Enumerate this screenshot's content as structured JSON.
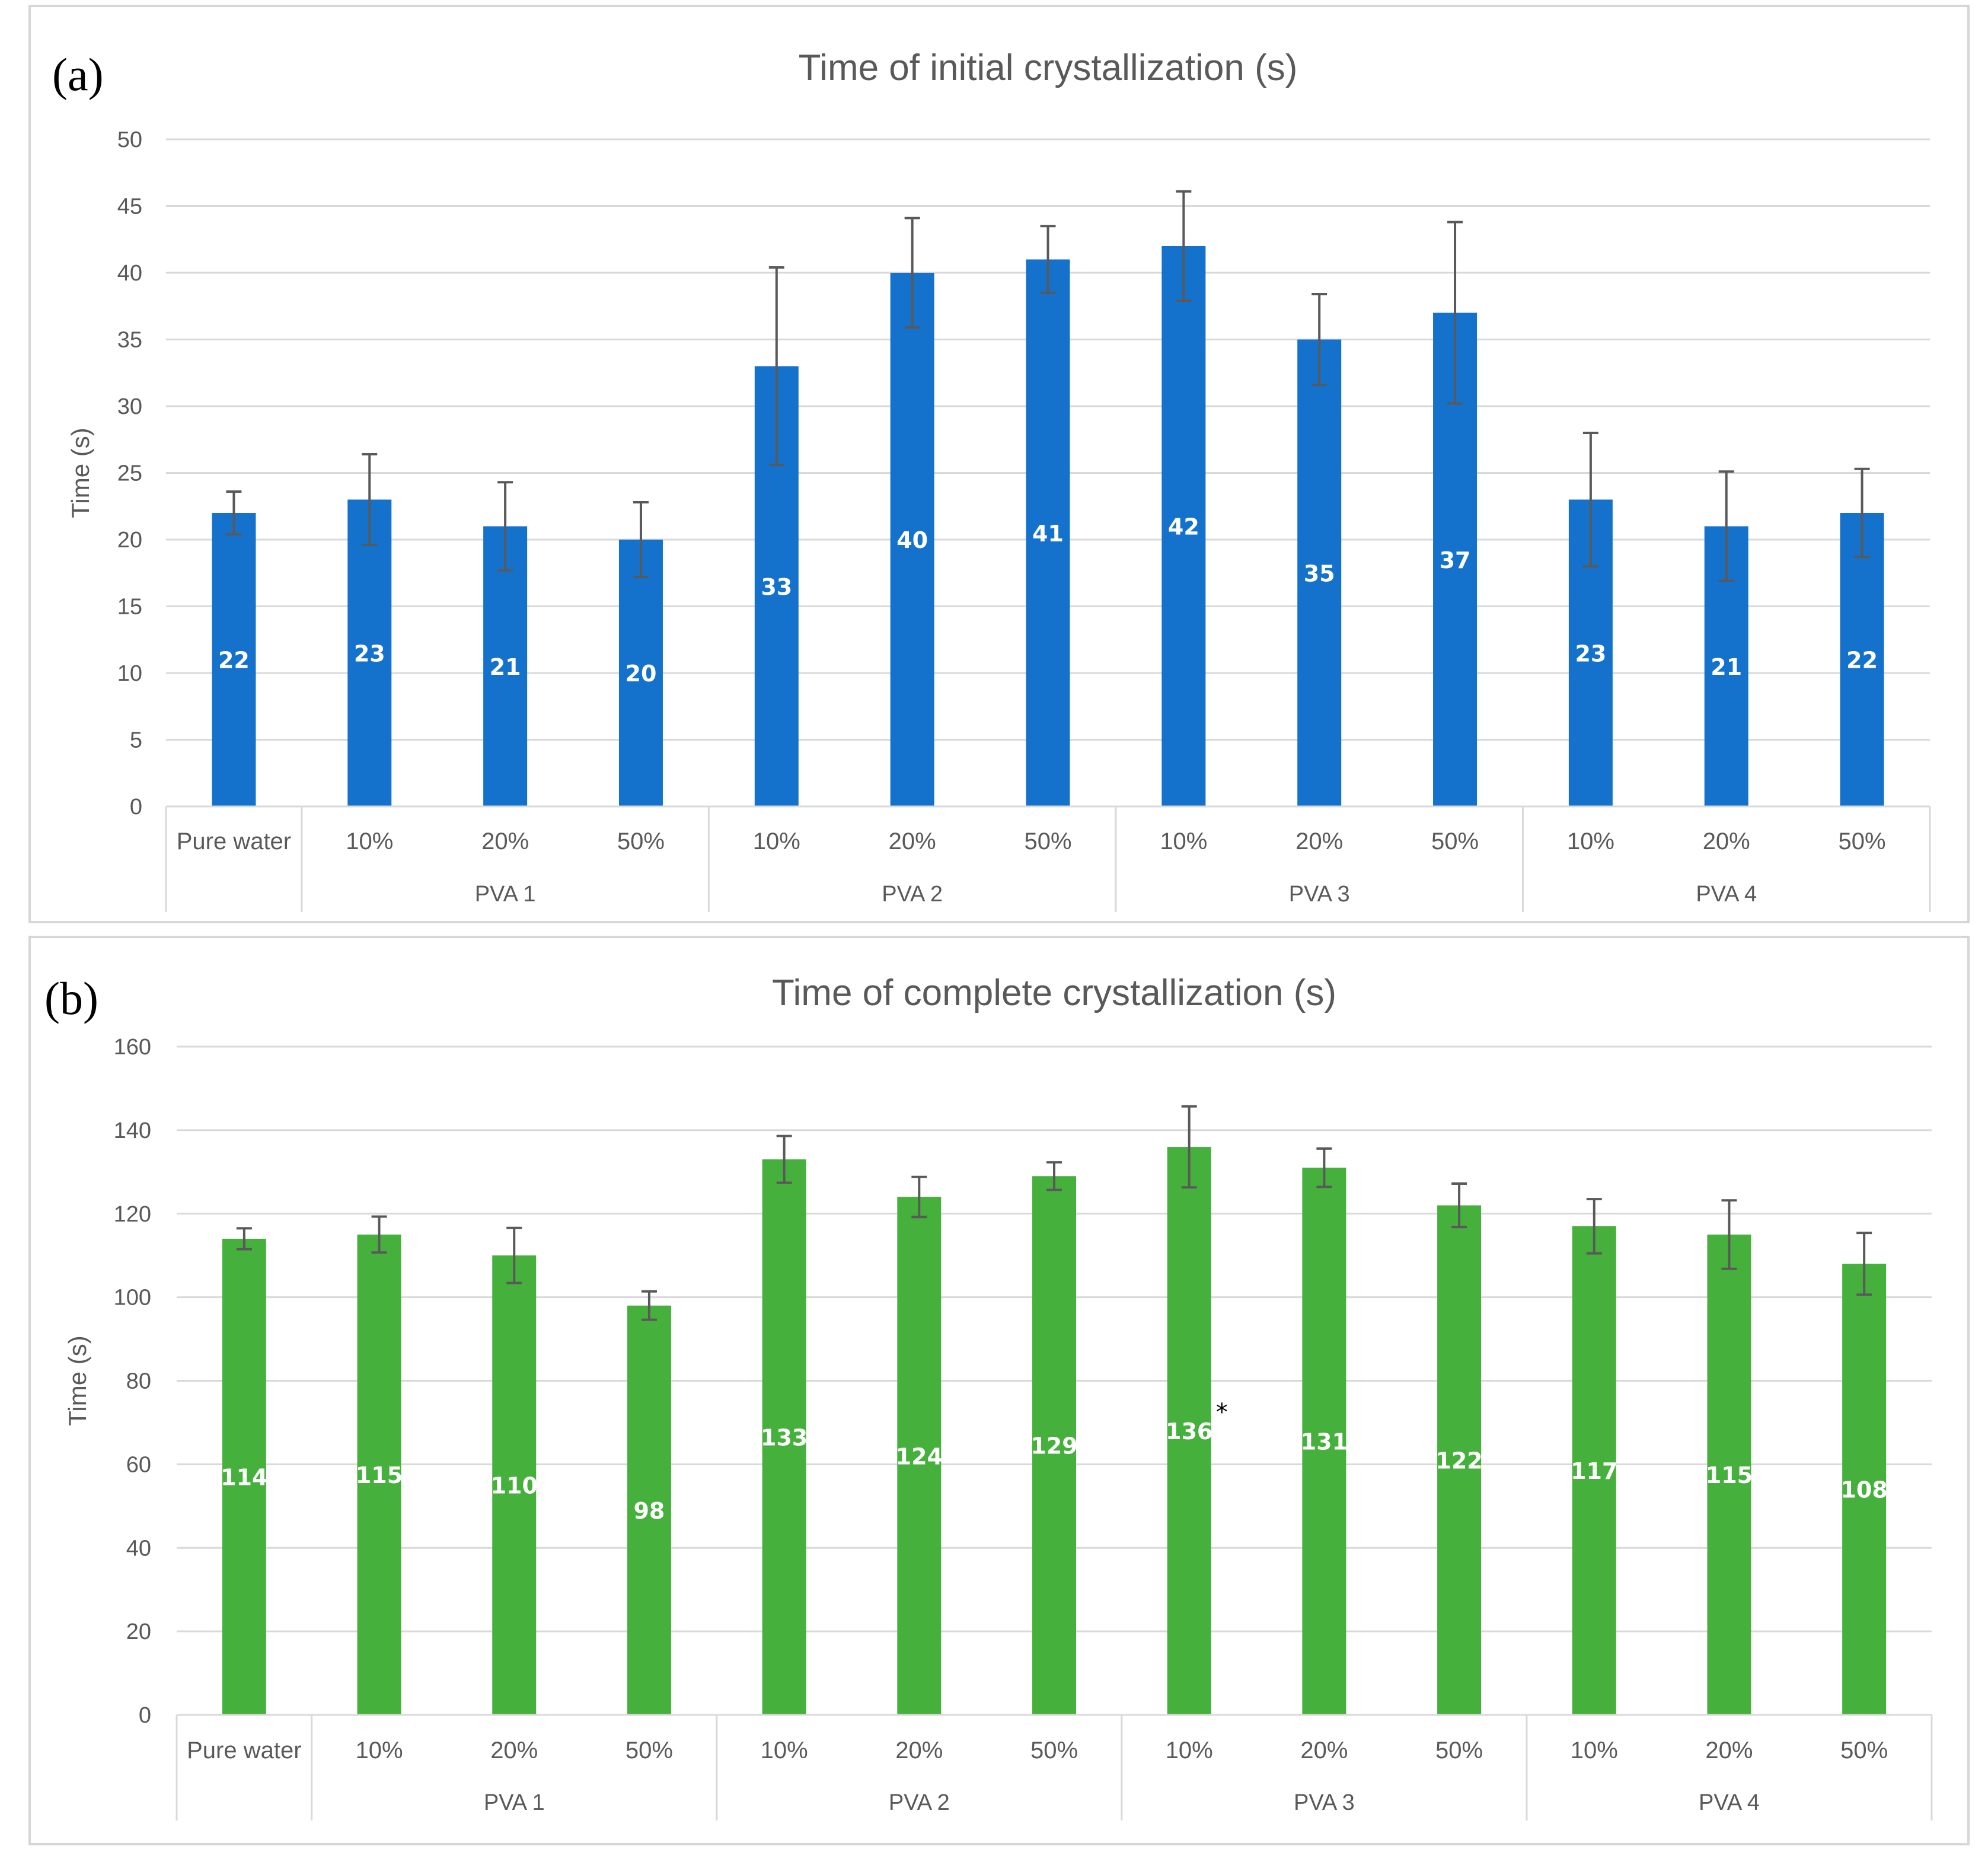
{
  "chart_data": [
    {
      "type": "bar",
      "panel_label": "(a)",
      "title": "Time of initial crystallization (s)",
      "ylabel": "Time (s)",
      "xlabel": "",
      "ylim": [
        0,
        50
      ],
      "yticks": [
        0,
        5,
        10,
        15,
        20,
        25,
        30,
        35,
        40,
        45,
        50
      ],
      "color": "#1572CC",
      "categories": [
        "Pure water",
        "10%",
        "20%",
        "50%",
        "10%",
        "20%",
        "50%",
        "10%",
        "20%",
        "50%",
        "10%",
        "20%",
        "50%"
      ],
      "groups": [
        {
          "name": "",
          "size": 1
        },
        {
          "name": "PVA 1",
          "size": 3
        },
        {
          "name": "PVA 2",
          "size": 3
        },
        {
          "name": "PVA 3",
          "size": 3
        },
        {
          "name": "PVA 4",
          "size": 3
        }
      ],
      "values": [
        22,
        23,
        21,
        20,
        33,
        40,
        41,
        42,
        35,
        37,
        23,
        21,
        22
      ],
      "errors": [
        1.6,
        3.4,
        3.3,
        2.8,
        7.4,
        4.1,
        2.5,
        4.1,
        3.4,
        6.8,
        5.0,
        4.1,
        3.3
      ],
      "data_labels": [
        "22",
        "23",
        "21",
        "20",
        "33",
        "40",
        "41",
        "42",
        "35",
        "37",
        "23",
        "21",
        "22"
      ],
      "annotation": null
    },
    {
      "type": "bar",
      "panel_label": "(b)",
      "title": "Time of complete crystallization (s)",
      "ylabel": "Time (s)",
      "xlabel": "",
      "ylim": [
        0,
        160
      ],
      "yticks": [
        0,
        20,
        40,
        60,
        80,
        100,
        120,
        140,
        160
      ],
      "color": "#46B03C",
      "categories": [
        "Pure water",
        "10%",
        "20%",
        "50%",
        "10%",
        "20%",
        "50%",
        "10%",
        "20%",
        "50%",
        "10%",
        "20%",
        "50%"
      ],
      "groups": [
        {
          "name": "",
          "size": 1
        },
        {
          "name": "PVA 1",
          "size": 3
        },
        {
          "name": "PVA 2",
          "size": 3
        },
        {
          "name": "PVA 3",
          "size": 3
        },
        {
          "name": "PVA 4",
          "size": 3
        }
      ],
      "values": [
        114,
        115,
        110,
        98,
        133,
        124,
        129,
        136,
        131,
        122,
        117,
        115,
        108
      ],
      "errors": [
        2.5,
        4.3,
        6.6,
        3.4,
        5.6,
        4.8,
        3.3,
        9.7,
        4.6,
        5.2,
        6.5,
        8.2,
        7.4
      ],
      "data_labels": [
        "114",
        "115",
        "110",
        "98",
        "133",
        "124",
        "129",
        "136",
        "131",
        "122",
        "117",
        "115",
        "108"
      ],
      "annotation": {
        "category_index": 7,
        "text": "*"
      }
    }
  ]
}
